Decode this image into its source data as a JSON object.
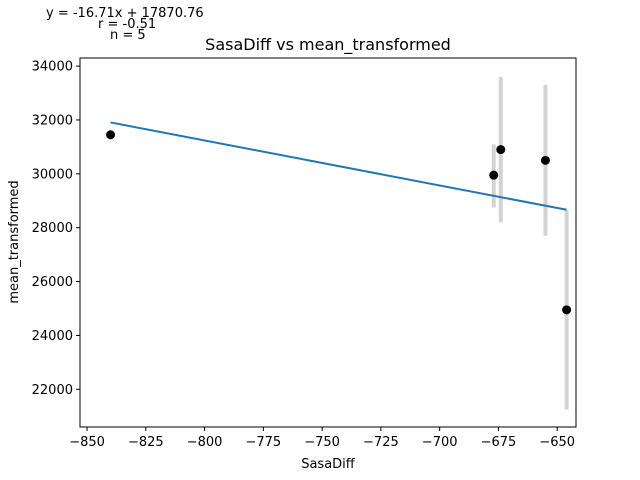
{
  "chart_data": {
    "type": "scatter",
    "title": "SasaDiff vs mean_transformed",
    "xlabel": "SasaDiff",
    "ylabel": "mean_transformed",
    "xlim": [
      -853,
      -642
    ],
    "ylim": [
      20600,
      34300
    ],
    "xticks": [
      -850,
      -825,
      -800,
      -775,
      -750,
      -725,
      -700,
      -675,
      -650
    ],
    "yticks": [
      22000,
      24000,
      26000,
      28000,
      30000,
      32000,
      34000
    ],
    "xtick_labels": [
      "−850",
      "−825",
      "−800",
      "−775",
      "−750",
      "−725",
      "−700",
      "−675",
      "−650"
    ],
    "ytick_labels": [
      "22000",
      "24000",
      "26000",
      "28000",
      "30000",
      "32000",
      "34000"
    ],
    "points": [
      {
        "x": -840,
        "y": 31450,
        "err_low": null,
        "err_high": null
      },
      {
        "x": -677,
        "y": 29950,
        "err_low": 28750,
        "err_high": 31100
      },
      {
        "x": -674,
        "y": 30900,
        "err_low": 28200,
        "err_high": 33600
      },
      {
        "x": -655,
        "y": 30500,
        "err_low": 27700,
        "err_high": 33300
      },
      {
        "x": -646,
        "y": 24950,
        "err_low": 21250,
        "err_high": 28650
      }
    ],
    "fit_line": {
      "slope": -16.71,
      "intercept": 17870.76,
      "x_start": -840,
      "x_end": -646
    },
    "annotations": {
      "equation": "y = -16.71x + 17870.76",
      "r_value": "r = -0.51",
      "n_value": "n = 5"
    },
    "colors": {
      "points": "#000000",
      "fit_line": "#1f77b4",
      "error_bars": "#d3d3d3"
    },
    "grid": false,
    "legend": "none"
  }
}
